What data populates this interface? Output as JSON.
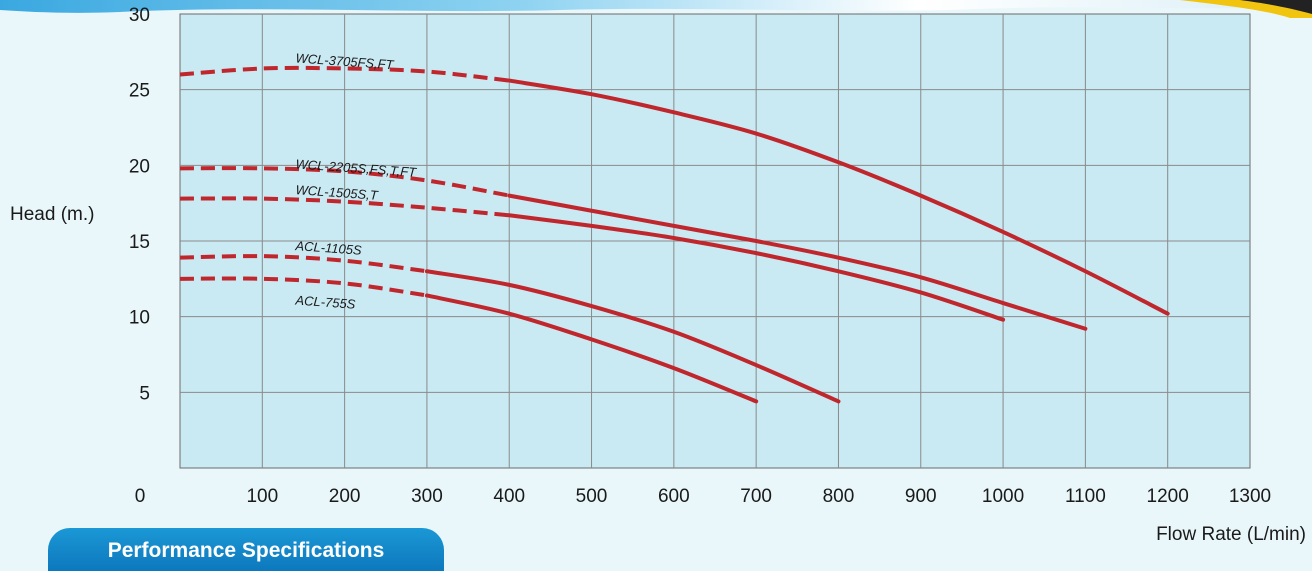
{
  "chart_data": {
    "type": "line",
    "title": "",
    "xlabel": "Flow Rate (L/min)",
    "ylabel": "Head (m.)",
    "xlim": [
      0,
      1300
    ],
    "ylim": [
      0,
      30
    ],
    "x_ticks": [
      "0",
      "100",
      "200",
      "300",
      "400",
      "500",
      "600",
      "700",
      "800",
      "900",
      "1000",
      "1100",
      "1200",
      "1300"
    ],
    "y_ticks": [
      "5",
      "10",
      "15",
      "20",
      "25",
      "30"
    ],
    "grid": true,
    "line_color": "#c0272d",
    "plot_background": "#c9e9f3",
    "series": [
      {
        "name": "WCL-3705FS,FT",
        "label_at": [
          140,
          26.8
        ],
        "dashed_to": 400,
        "points": [
          [
            0,
            26.0
          ],
          [
            100,
            26.4
          ],
          [
            200,
            26.4
          ],
          [
            300,
            26.2
          ],
          [
            400,
            25.6
          ],
          [
            500,
            24.7
          ],
          [
            600,
            23.5
          ],
          [
            700,
            22.1
          ],
          [
            800,
            20.2
          ],
          [
            900,
            18.0
          ],
          [
            1000,
            15.6
          ],
          [
            1100,
            13.0
          ],
          [
            1200,
            10.2
          ]
        ]
      },
      {
        "name": "WCL-2205S,FS,T,FT",
        "label_at": [
          140,
          19.8
        ],
        "dashed_to": 400,
        "points": [
          [
            0,
            19.8
          ],
          [
            100,
            19.8
          ],
          [
            200,
            19.6
          ],
          [
            300,
            19.0
          ],
          [
            400,
            18.0
          ],
          [
            500,
            17.0
          ],
          [
            600,
            16.0
          ],
          [
            700,
            15.0
          ],
          [
            800,
            13.9
          ],
          [
            900,
            12.6
          ],
          [
            1000,
            10.9
          ],
          [
            1100,
            9.2
          ]
        ]
      },
      {
        "name": "WCL-1505S,T",
        "label_at": [
          140,
          18.1
        ],
        "dashed_to": 400,
        "points": [
          [
            0,
            17.8
          ],
          [
            100,
            17.8
          ],
          [
            200,
            17.6
          ],
          [
            300,
            17.2
          ],
          [
            400,
            16.7
          ],
          [
            500,
            16.0
          ],
          [
            600,
            15.2
          ],
          [
            700,
            14.2
          ],
          [
            800,
            13.0
          ],
          [
            900,
            11.6
          ],
          [
            1000,
            9.8
          ]
        ]
      },
      {
        "name": "ACL-1105S",
        "label_at": [
          140,
          14.4
        ],
        "dashed_to": 300,
        "points": [
          [
            0,
            13.9
          ],
          [
            100,
            14.0
          ],
          [
            200,
            13.7
          ],
          [
            300,
            13.0
          ],
          [
            400,
            12.1
          ],
          [
            500,
            10.7
          ],
          [
            600,
            9.0
          ],
          [
            700,
            6.8
          ],
          [
            800,
            4.4
          ]
        ]
      },
      {
        "name": "ACL-755S",
        "label_at": [
          140,
          10.8
        ],
        "dashed_to": 300,
        "points": [
          [
            0,
            12.5
          ],
          [
            100,
            12.5
          ],
          [
            200,
            12.2
          ],
          [
            300,
            11.4
          ],
          [
            400,
            10.2
          ],
          [
            500,
            8.5
          ],
          [
            600,
            6.6
          ],
          [
            700,
            4.4
          ]
        ]
      }
    ]
  },
  "tab": {
    "label": "Performance Specifications"
  }
}
